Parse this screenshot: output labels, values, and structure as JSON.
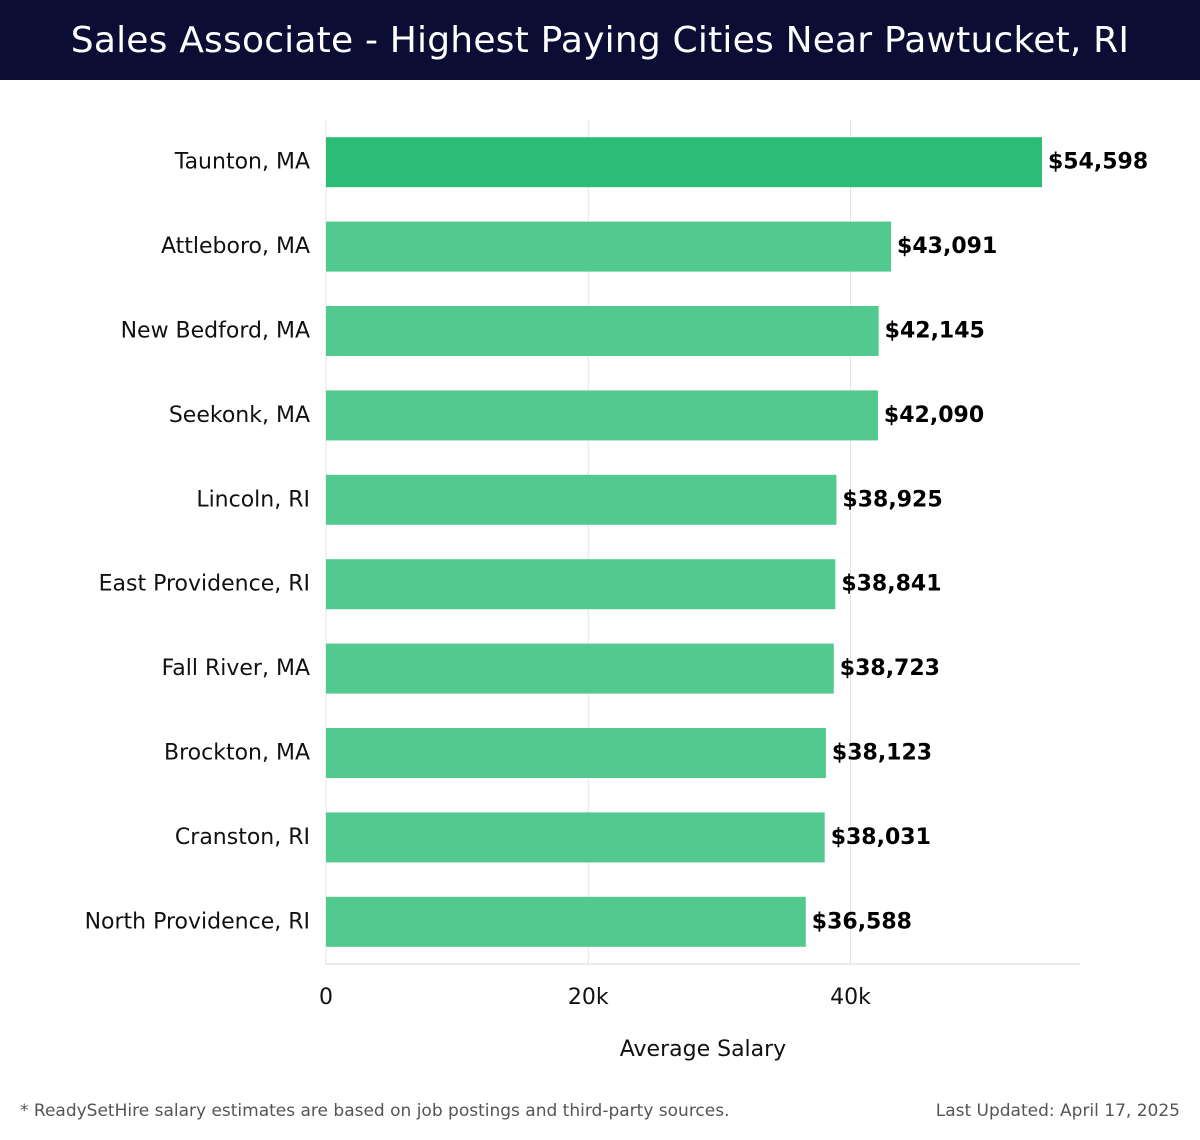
{
  "header": {
    "title": "Sales Associate - Highest Paying Cities Near Pawtucket, RI"
  },
  "chart_data": {
    "type": "bar",
    "orientation": "horizontal",
    "categories": [
      "Taunton, MA",
      "Attleboro, MA",
      "New Bedford, MA",
      "Seekonk, MA",
      "Lincoln, RI",
      "East Providence, RI",
      "Fall River, MA",
      "Brockton, MA",
      "Cranston, RI",
      "North Providence, RI"
    ],
    "values": [
      54598,
      43091,
      42145,
      42090,
      38925,
      38841,
      38723,
      38123,
      38031,
      36588
    ],
    "value_labels": [
      "$54,598",
      "$43,091",
      "$42,145",
      "$42,090",
      "$38,925",
      "$38,841",
      "$38,723",
      "$38,123",
      "$38,031",
      "$36,588"
    ],
    "xlabel": "Average Salary",
    "ylabel": "",
    "xlim": [
      0,
      57500
    ],
    "xticks": [
      0,
      20000,
      40000
    ],
    "xtick_labels": [
      "0",
      "20k",
      "40k"
    ],
    "grid": true,
    "colors": {
      "top_bar": "#2bbd76",
      "bar": "#52c98f"
    }
  },
  "footer": {
    "note": "* ReadySetHire salary estimates are based on job postings and third-party sources.",
    "updated": "Last Updated: April 17, 2025"
  }
}
